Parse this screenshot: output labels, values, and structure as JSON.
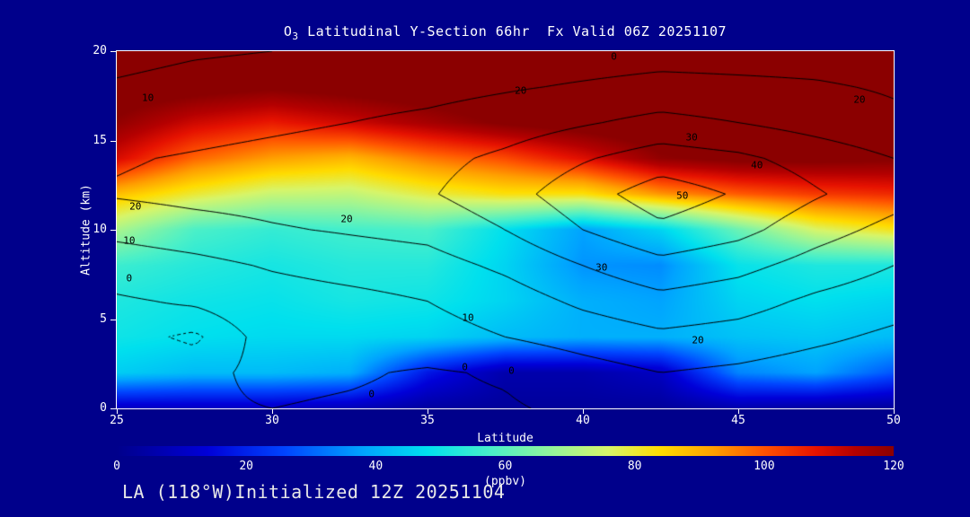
{
  "title": {
    "prefix": "O",
    "sub": "3",
    "rest": " Latitudinal Y-Section 66hr  Fx Valid 06Z 20251107"
  },
  "footer": {
    "text": "LA (118°W)Initialized 12Z 20251104"
  },
  "axes": {
    "x": {
      "label": "Latitude",
      "min": 25,
      "max": 50,
      "ticks": [
        25,
        30,
        35,
        40,
        45,
        50
      ]
    },
    "y": {
      "label": "Altitude (km)",
      "min": 0,
      "max": 20,
      "ticks": [
        0,
        5,
        10,
        15,
        20
      ]
    }
  },
  "colorbar": {
    "label": "(ppbv)",
    "min": 0,
    "max": 120,
    "ticks": [
      0,
      20,
      40,
      60,
      80,
      100,
      120
    ]
  },
  "colors": {
    "background": "#00008B",
    "text": "#FFFFFF",
    "frame": "#FFFFFF",
    "contour_line": "#000000"
  },
  "chart_data": {
    "type": "heatmap",
    "overlay": "contour",
    "title": "O3 Latitudinal Y-Section 66hr Fx Valid 06Z 20251107",
    "xlabel": "Latitude",
    "ylabel": "Altitude (km)",
    "fill_units": "ppbv",
    "xlim": [
      25,
      50
    ],
    "ylim": [
      0,
      20
    ],
    "x": [
      25,
      27.5,
      30,
      32.5,
      35,
      37.5,
      40,
      42.5,
      45,
      47.5,
      50
    ],
    "y": [
      0,
      2,
      4,
      6,
      8,
      10,
      12,
      14,
      16,
      18,
      20
    ],
    "grid_order": "rows run from y=0 (bottom) to y=20 (top)",
    "fill_grid": [
      [
        10,
        10,
        10,
        8,
        4,
        3,
        3,
        3,
        6,
        4,
        3
      ],
      [
        45,
        42,
        42,
        40,
        18,
        6,
        6,
        10,
        34,
        38,
        28
      ],
      [
        50,
        48,
        47,
        47,
        46,
        42,
        40,
        40,
        43,
        44,
        42
      ],
      [
        52,
        50,
        49,
        51,
        50,
        46,
        40,
        38,
        46,
        48,
        46
      ],
      [
        56,
        53,
        51,
        53,
        53,
        46,
        36,
        35,
        49,
        52,
        52
      ],
      [
        70,
        58,
        55,
        57,
        58,
        48,
        38,
        46,
        62,
        76,
        82
      ],
      [
        88,
        80,
        74,
        73,
        79,
        83,
        83,
        93,
        99,
        103,
        105
      ],
      [
        110,
        98,
        92,
        89,
        96,
        101,
        109,
        119,
        122,
        122,
        121
      ],
      [
        119,
        111,
        107,
        111,
        116,
        121,
        124,
        126,
        126,
        126,
        126
      ],
      [
        125,
        123,
        121,
        123,
        125,
        126,
        126,
        126,
        126,
        126,
        126
      ],
      [
        126,
        126,
        126,
        126,
        126,
        126,
        126,
        126,
        126,
        126,
        126
      ]
    ],
    "line_grid": [
      [
        -2,
        -1,
        0,
        -1,
        -2,
        -1,
        2,
        4,
        3,
        1,
        1
      ],
      [
        0,
        -2,
        2,
        1,
        -1,
        1,
        6,
        10,
        8,
        5,
        3
      ],
      [
        -3,
        -6,
        3,
        5,
        6,
        10,
        14,
        18,
        16,
        12,
        8
      ],
      [
        -1,
        1,
        5,
        7,
        10,
        15,
        22,
        27,
        24,
        18,
        14
      ],
      [
        4,
        7,
        11,
        14,
        16,
        22,
        30,
        37,
        33,
        26,
        20
      ],
      [
        13,
        16,
        19,
        21,
        23,
        30,
        40,
        48,
        43,
        34,
        27
      ],
      [
        21,
        23,
        24,
        26,
        29,
        36,
        46,
        55,
        49,
        41,
        34
      ],
      [
        19,
        21,
        23,
        25,
        27,
        32,
        39,
        45,
        42,
        36,
        30
      ],
      [
        14,
        16,
        18,
        20,
        22,
        25,
        29,
        33,
        30,
        26,
        22
      ],
      [
        11,
        13,
        14,
        16,
        17,
        19,
        21,
        23,
        22,
        21,
        19
      ],
      [
        7,
        9,
        10,
        12,
        13,
        14,
        15,
        16,
        16,
        16,
        15
      ]
    ],
    "contour_levels_solid": [
      0,
      10,
      20,
      30,
      40,
      50
    ],
    "contour_levels_dotted": [
      -5
    ],
    "colormap_stops": [
      [
        0,
        "#00008B"
      ],
      [
        14,
        "#0000D8"
      ],
      [
        26,
        "#0045FF"
      ],
      [
        38,
        "#00A4FF"
      ],
      [
        48,
        "#00E0EE"
      ],
      [
        58,
        "#4BF0C8"
      ],
      [
        68,
        "#9BF596"
      ],
      [
        76,
        "#D7F569"
      ],
      [
        84,
        "#FFDC00"
      ],
      [
        92,
        "#FFA000"
      ],
      [
        100,
        "#FF5200"
      ],
      [
        108,
        "#E61200"
      ],
      [
        114,
        "#B40000"
      ],
      [
        120,
        "#8B0000"
      ]
    ],
    "contour_labels": [
      {
        "x": 26.0,
        "y": 17.4,
        "t": "10"
      },
      {
        "x": 38.0,
        "y": 17.8,
        "t": "20"
      },
      {
        "x": 41.0,
        "y": 19.7,
        "t": "0"
      },
      {
        "x": 48.9,
        "y": 17.3,
        "t": "20"
      },
      {
        "x": 43.5,
        "y": 15.2,
        "t": "30"
      },
      {
        "x": 45.6,
        "y": 13.6,
        "t": "40"
      },
      {
        "x": 43.2,
        "y": 11.9,
        "t": "50"
      },
      {
        "x": 25.6,
        "y": 11.3,
        "t": "20"
      },
      {
        "x": 25.4,
        "y": 9.4,
        "t": "10"
      },
      {
        "x": 25.4,
        "y": 7.3,
        "t": "0"
      },
      {
        "x": 32.4,
        "y": 10.6,
        "t": "20"
      },
      {
        "x": 40.6,
        "y": 7.9,
        "t": "30"
      },
      {
        "x": 36.3,
        "y": 5.1,
        "t": "10"
      },
      {
        "x": 43.7,
        "y": 3.8,
        "t": "20"
      },
      {
        "x": 36.2,
        "y": 2.3,
        "t": "0"
      },
      {
        "x": 37.7,
        "y": 2.1,
        "t": "0"
      },
      {
        "x": 33.2,
        "y": 0.8,
        "t": "0"
      }
    ]
  }
}
